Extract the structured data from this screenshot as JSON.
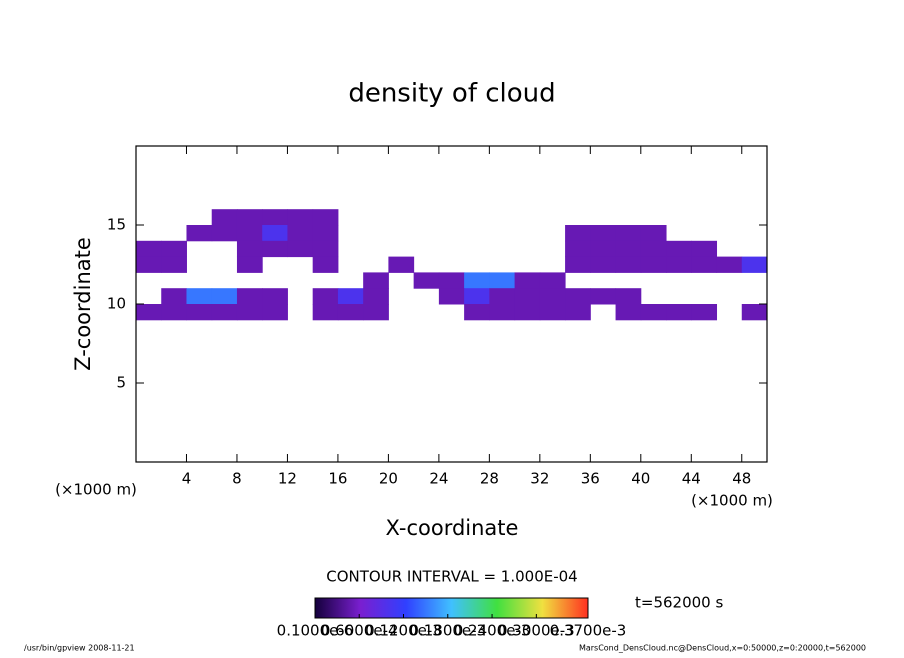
{
  "chart_data": {
    "type": "heatmap",
    "title": "density of cloud",
    "x_label": "X-coordinate",
    "y_label": "Z-coordinate",
    "x_unit": "(×1000 m)",
    "y_unit": "(×1000 m)",
    "xlim": [
      0,
      50
    ],
    "ylim": [
      0,
      20
    ],
    "xticks": [
      4,
      8,
      12,
      16,
      20,
      24,
      28,
      32,
      36,
      40,
      44,
      48
    ],
    "yticks": [
      5,
      10,
      15
    ],
    "x": [
      1,
      3,
      5,
      7,
      9,
      11,
      13,
      15,
      17,
      19,
      21,
      23,
      25,
      27,
      29,
      31,
      33,
      35,
      37,
      39,
      41,
      43,
      45,
      47,
      49
    ],
    "y": [
      15.5,
      14.5,
      13.5,
      12.5,
      11.5,
      10.5,
      9.5
    ],
    "z": [
      [
        null,
        null,
        null,
        5e-05,
        5e-05,
        5e-05,
        5e-05,
        5e-05,
        null,
        null,
        null,
        null,
        null,
        null,
        null,
        null,
        null,
        null,
        null,
        null,
        null,
        null,
        null,
        null,
        null
      ],
      [
        null,
        null,
        5e-05,
        5e-05,
        5e-05,
        0.0001,
        5e-05,
        5e-05,
        null,
        null,
        null,
        null,
        null,
        null,
        null,
        null,
        null,
        5e-05,
        5e-05,
        5e-05,
        5e-05,
        null,
        null,
        null,
        null
      ],
      [
        5e-05,
        5e-05,
        null,
        null,
        5e-05,
        5e-05,
        5e-05,
        5e-05,
        null,
        null,
        null,
        null,
        null,
        null,
        null,
        null,
        null,
        5e-05,
        5e-05,
        5e-05,
        5e-05,
        5e-05,
        5e-05,
        null,
        null
      ],
      [
        5e-05,
        5e-05,
        null,
        null,
        5e-05,
        null,
        null,
        5e-05,
        null,
        null,
        5e-05,
        null,
        null,
        null,
        null,
        null,
        null,
        5e-05,
        5e-05,
        5e-05,
        5e-05,
        5e-05,
        5e-05,
        5e-05,
        0.0001
      ],
      [
        null,
        null,
        null,
        null,
        null,
        null,
        null,
        null,
        null,
        5e-05,
        null,
        5e-05,
        5e-05,
        0.00015,
        0.00015,
        5e-05,
        5e-05,
        null,
        null,
        null,
        null,
        null,
        null,
        null,
        null
      ],
      [
        null,
        5e-05,
        0.00015,
        0.00015,
        5e-05,
        5e-05,
        null,
        5e-05,
        0.0001,
        5e-05,
        null,
        null,
        5e-05,
        0.0001,
        5e-05,
        5e-05,
        5e-05,
        5e-05,
        5e-05,
        5e-05,
        null,
        null,
        null,
        null,
        null
      ],
      [
        5e-05,
        5e-05,
        5e-05,
        5e-05,
        5e-05,
        5e-05,
        null,
        5e-05,
        5e-05,
        5e-05,
        null,
        null,
        null,
        5e-05,
        5e-05,
        5e-05,
        5e-05,
        5e-05,
        null,
        5e-05,
        5e-05,
        5e-05,
        5e-05,
        null,
        5e-05
      ]
    ],
    "colormap": [
      "#14003c",
      "#7a1fd0",
      "#3040ff",
      "#40c0ff",
      "#40e040",
      "#f0e040",
      "#ff3020"
    ],
    "clim": [
      1e-07,
      0.00037
    ],
    "colorbar_ticks": [
      {
        "value": 1e-07,
        "label": "0.1000e-6"
      },
      {
        "value": 6e-05,
        "label": "0.6000e-4"
      },
      {
        "value": 0.00012,
        "label": "0.1200e-3"
      },
      {
        "value": 0.00018,
        "label": "0.1800e-3"
      },
      {
        "value": 0.00024,
        "label": "0.2400e-3"
      },
      {
        "value": 0.0003,
        "label": "0.3000e-3"
      },
      {
        "value": 0.00037,
        "label": "0.3700e-3"
      }
    ],
    "contour_note": "CONTOUR INTERVAL = 1.000E-04",
    "time_note": "t=562000 s",
    "footer_left": "/usr/bin/gpview   2008-11-21",
    "footer_right": "MarsCond_DensCloud.nc@DensCloud,x=0:50000,z=0:20000,t=562000"
  }
}
